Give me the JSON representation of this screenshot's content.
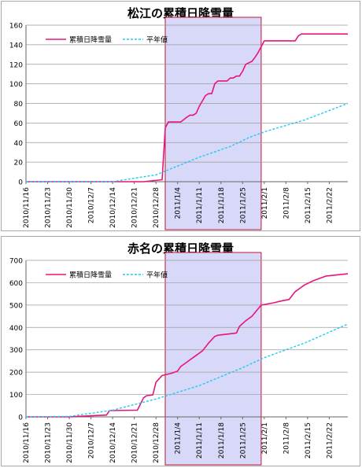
{
  "chart_data": [
    {
      "type": "line",
      "title": "松江の累積日降雪量",
      "ylim": [
        0,
        160
      ],
      "yticks": [
        0,
        20,
        40,
        60,
        80,
        100,
        120,
        140,
        160
      ],
      "xlim": [
        "2010-11-16",
        "2011-02-28"
      ],
      "xtick_labels": [
        "2010/11/16",
        "2010/11/23",
        "2010/11/30",
        "2010/12/7",
        "2010/12/14",
        "2010/12/21",
        "2010/12/28",
        "2011/1/4",
        "2011/1/11",
        "2011/1/18",
        "2011/1/25",
        "2011/2/1",
        "2011/2/8",
        "2011/2/15",
        "2011/2/22"
      ],
      "highlight": {
        "from": "2010-12-31",
        "to": "2011-01-31",
        "fill": "#d8d8f8",
        "stroke": "#c0143c"
      },
      "grid": true,
      "legend": "top-left",
      "series": [
        {
          "name": "累積日降雪量",
          "color": "#e8147c",
          "style": "solid",
          "x": [
            "2010-11-16",
            "2010-12-24",
            "2010-12-30",
            "2010-12-31",
            "2011-01-01",
            "2011-01-05",
            "2011-01-07",
            "2011-01-08",
            "2011-01-09",
            "2011-01-10",
            "2011-01-11",
            "2011-01-13",
            "2011-01-14",
            "2011-01-15",
            "2011-01-16",
            "2011-01-17",
            "2011-01-19",
            "2011-01-20",
            "2011-01-21",
            "2011-01-22",
            "2011-01-23",
            "2011-01-24",
            "2011-01-25",
            "2011-01-26",
            "2011-01-28",
            "2011-01-29",
            "2011-01-30",
            "2011-01-31",
            "2011-02-01",
            "2011-02-11",
            "2011-02-12",
            "2011-02-13",
            "2011-02-28"
          ],
          "y": [
            0,
            0,
            2,
            55,
            61,
            61,
            66,
            68,
            68,
            70,
            77,
            88,
            90,
            90,
            100,
            103,
            103,
            103,
            106,
            106,
            108,
            108,
            113,
            120,
            123,
            127,
            132,
            138,
            144,
            144,
            149,
            151,
            151
          ]
        },
        {
          "name": "平年値",
          "color": "#22ccee",
          "style": "dashed",
          "x": [
            "2010-11-16",
            "2010-12-14",
            "2010-12-28",
            "2011-01-11",
            "2011-01-21",
            "2011-01-27",
            "2011-02-01",
            "2011-02-14",
            "2011-02-28"
          ],
          "y": [
            0,
            0,
            7,
            25,
            36,
            45,
            51,
            63,
            80
          ]
        }
      ]
    },
    {
      "type": "line",
      "title": "赤名の累積日降雪量",
      "ylim": [
        0,
        700
      ],
      "yticks": [
        0,
        100,
        200,
        300,
        400,
        500,
        600,
        700
      ],
      "xlim": [
        "2010-11-16",
        "2011-02-28"
      ],
      "xtick_labels": [
        "2010/11/16",
        "2010/11/23",
        "2010/11/30",
        "2010/12/7",
        "2010/12/14",
        "2010/12/21",
        "2010/12/28",
        "2011/1/4",
        "2011/1/11",
        "2011/1/18",
        "2011/1/25",
        "2011/2/1",
        "2011/2/8",
        "2011/2/15",
        "2011/2/22"
      ],
      "highlight": {
        "from": "2010-12-31",
        "to": "2011-01-31",
        "fill": "#d8d8f8",
        "stroke": "#c0143c"
      },
      "grid": true,
      "legend": "top-left",
      "series": [
        {
          "name": "累積日降雪量",
          "color": "#e8147c",
          "style": "solid",
          "x": [
            "2010-11-16",
            "2010-11-30",
            "2010-12-07",
            "2010-12-12",
            "2010-12-13",
            "2010-12-22",
            "2010-12-24",
            "2010-12-25",
            "2010-12-27",
            "2010-12-28",
            "2010-12-30",
            "2011-01-02",
            "2011-01-04",
            "2011-01-05",
            "2011-01-07",
            "2011-01-08",
            "2011-01-10",
            "2011-01-12",
            "2011-01-14",
            "2011-01-16",
            "2011-01-17",
            "2011-01-20",
            "2011-01-23",
            "2011-01-24",
            "2011-01-26",
            "2011-01-28",
            "2011-01-31",
            "2011-02-04",
            "2011-02-07",
            "2011-02-09",
            "2011-02-11",
            "2011-02-14",
            "2011-02-17",
            "2011-02-21",
            "2011-02-28"
          ],
          "y": [
            0,
            0,
            5,
            8,
            28,
            30,
            85,
            95,
            98,
            155,
            185,
            195,
            205,
            225,
            245,
            255,
            275,
            295,
            330,
            360,
            365,
            370,
            375,
            405,
            430,
            450,
            500,
            510,
            520,
            525,
            560,
            590,
            610,
            630,
            640
          ]
        },
        {
          "name": "平年値",
          "color": "#22ccee",
          "style": "dashed",
          "x": [
            "2010-11-16",
            "2010-11-30",
            "2010-12-14",
            "2010-12-28",
            "2011-01-11",
            "2011-01-25",
            "2011-02-01",
            "2011-02-14",
            "2011-02-28"
          ],
          "y": [
            0,
            2,
            30,
            80,
            140,
            220,
            265,
            330,
            415
          ]
        }
      ]
    }
  ]
}
